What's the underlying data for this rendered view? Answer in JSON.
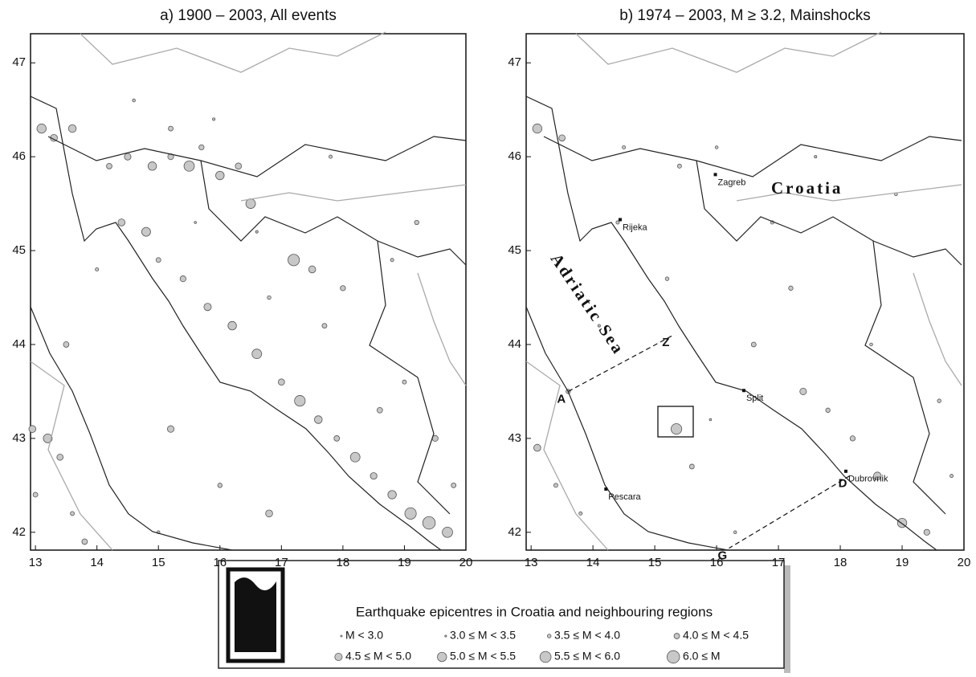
{
  "chart_data": [
    {
      "type": "scatter",
      "title": "a) 1900 – 2003, All events",
      "xlim": [
        12.92,
        20.0
      ],
      "ylim": [
        41.81,
        47.31
      ],
      "xticks": [
        13,
        14,
        15,
        16,
        17,
        18,
        19,
        20
      ],
      "yticks": [
        42,
        43,
        44,
        45,
        46,
        47
      ],
      "series": [
        {
          "color": "#c8c8c8",
          "x": [
            13.1,
            13.3,
            13.6,
            14.2,
            14.5,
            14.9,
            15.2,
            15.5,
            15.7,
            16.0,
            16.3,
            14.4,
            14.8,
            15.0,
            15.4,
            15.8,
            16.2,
            16.6,
            17.0,
            17.3,
            17.6,
            17.9,
            18.2,
            18.5,
            18.8,
            19.1,
            19.4,
            19.7,
            17.2,
            17.5,
            16.5,
            15.2,
            18.6,
            19.0,
            18.0,
            16.8,
            14.0,
            13.5,
            13.2,
            13.4,
            13.0,
            13.6,
            15.2,
            16.0,
            16.8,
            18.8,
            19.5,
            19.8,
            14.6,
            15.9,
            17.8,
            19.2,
            13.8,
            15.0,
            12.95,
            16.6,
            15.6,
            17.7
          ],
          "values": [
            46.3,
            46.2,
            46.3,
            45.9,
            46.0,
            45.9,
            46.0,
            45.9,
            46.1,
            45.8,
            45.9,
            45.3,
            45.2,
            44.9,
            44.7,
            44.4,
            44.2,
            43.9,
            43.6,
            43.4,
            43.2,
            43.0,
            42.8,
            42.6,
            42.4,
            42.2,
            42.1,
            42.0,
            44.9,
            44.8,
            45.5,
            46.3,
            43.3,
            43.6,
            44.6,
            44.5,
            44.8,
            44.0,
            43.0,
            42.8,
            42.4,
            42.2,
            43.1,
            42.5,
            42.2,
            44.9,
            43.0,
            42.5,
            46.6,
            46.4,
            46.0,
            45.3,
            41.9,
            42.0,
            43.1,
            45.2,
            45.3,
            44.2
          ],
          "sizes": [
            5.2,
            4.6,
            4.8,
            4.2,
            4.5,
            5.0,
            4.3,
            5.5,
            4.1,
            5.0,
            4.4,
            4.6,
            5.1,
            4.0,
            4.3,
            4.7,
            5.0,
            5.3,
            4.4,
            5.6,
            4.8,
            4.2,
            5.3,
            4.5,
            5.0,
            5.8,
            6.1,
            5.5,
            5.8,
            4.6,
            5.3,
            4.0,
            4.2,
            3.8,
            4.1,
            3.7,
            3.6,
            4.2,
            5.1,
            4.4,
            4.0,
            3.8,
            4.5,
            3.9,
            4.6,
            3.6,
            4.3,
            4.0,
            3.5,
            3.4,
            3.6,
            3.9,
            4.2,
            3.5,
            4.6,
            3.4,
            3.3,
            4.0
          ]
        }
      ]
    },
    {
      "type": "scatter",
      "title": "b) 1974 – 2003, M ≥ 3.2, Mainshocks",
      "xlim": [
        12.92,
        20.0
      ],
      "ylim": [
        41.81,
        47.31
      ],
      "xticks": [
        13,
        14,
        15,
        16,
        17,
        18,
        19,
        20
      ],
      "yticks": [
        42,
        43,
        44,
        45,
        46,
        47
      ],
      "series": [
        {
          "color": "#c8c8c8",
          "x": [
            13.1,
            13.5,
            14.5,
            15.4,
            16.0,
            14.4,
            15.2,
            16.6,
            17.4,
            17.8,
            18.2,
            18.6,
            19.0,
            19.4,
            15.35,
            15.6,
            13.1,
            13.4,
            13.8,
            16.3,
            17.2,
            18.5,
            19.6,
            16.9,
            14.1,
            15.9,
            19.8,
            18.9,
            17.6,
            13.6
          ],
          "values": [
            46.3,
            46.2,
            46.1,
            45.9,
            46.1,
            45.3,
            44.7,
            44.0,
            43.5,
            43.3,
            43.0,
            42.6,
            42.1,
            42.0,
            43.1,
            42.7,
            42.9,
            42.5,
            42.2,
            42.0,
            44.6,
            44.0,
            43.4,
            45.3,
            44.2,
            43.2,
            42.6,
            45.6,
            46.0,
            43.5
          ],
          "sizes": [
            5.2,
            4.4,
            3.6,
            3.8,
            3.5,
            3.6,
            3.7,
            4.0,
            4.5,
            3.9,
            4.1,
            4.8,
            5.2,
            4.3,
            5.6,
            4.0,
            4.6,
            3.8,
            3.6,
            3.5,
            3.9,
            3.5,
            3.7,
            3.6,
            3.4,
            3.3,
            3.6,
            3.5,
            3.4,
            3.9
          ]
        }
      ],
      "annotations": [
        {
          "label": "Zagreb",
          "lon": 15.98,
          "lat": 45.81
        },
        {
          "label": "Rijeka",
          "lon": 14.44,
          "lat": 45.33
        },
        {
          "label": "Split",
          "lon": 16.44,
          "lat": 43.51
        },
        {
          "label": "Dubrovnik",
          "lon": 18.09,
          "lat": 42.65
        },
        {
          "label": "Pescara",
          "lon": 14.21,
          "lat": 42.46
        },
        {
          "label": "A",
          "lon": 13.6,
          "lat": 43.5
        },
        {
          "label": "Z",
          "lon": 15.3,
          "lat": 44.1
        },
        {
          "label": "D",
          "lon": 18.15,
          "lat": 42.6
        },
        {
          "label": "G",
          "lon": 16.2,
          "lat": 41.83
        }
      ],
      "region_label": "Croatia",
      "sea_label": "Adriatic Sea"
    }
  ],
  "legend": {
    "title": "Earthquake epicentres in Croatia and neighbouring regions",
    "items": [
      "M < 3.0",
      "3.0 ≤ M < 3.5",
      "3.5 ≤ M < 4.0",
      "4.0 ≤ M < 4.5",
      "4.5 ≤ M < 5.0",
      "5.0 ≤ M < 5.5",
      "5.5 ≤ M < 6.0",
      "6.0 ≤ M"
    ]
  }
}
